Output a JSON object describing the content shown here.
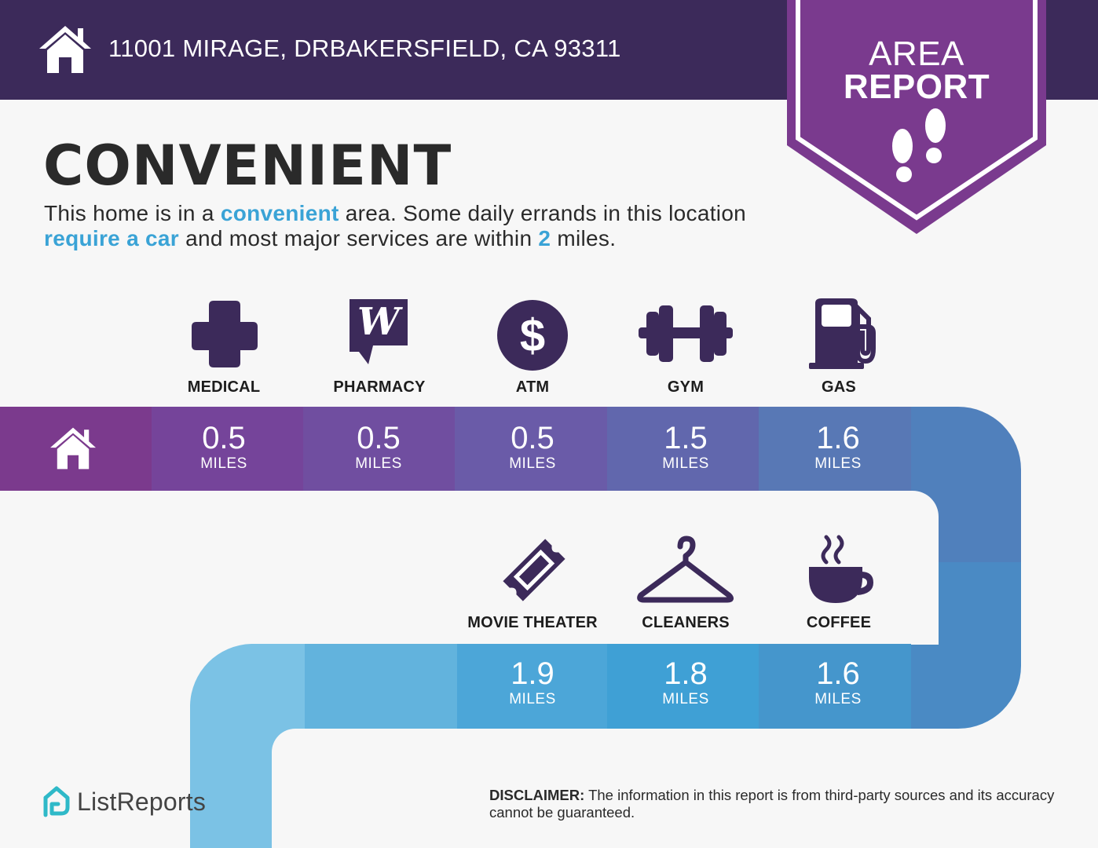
{
  "header": {
    "address": "11001 MIRAGE, DRBAKERSFIELD, CA 93311",
    "icon": "house-icon"
  },
  "badge": {
    "line1": "AREA",
    "line2": "REPORT",
    "icon": "footprints-icon"
  },
  "heading": "CONVENIENT",
  "description": {
    "part1": "This home is in a ",
    "hl1": "convenient",
    "part2": " area. Some daily errands in this location ",
    "hl2": "require a car",
    "part3": " and most major services are within ",
    "hl3": "2",
    "part4": " miles."
  },
  "amenities_top": [
    {
      "label": "MEDICAL",
      "value": "0.5",
      "unit": "MILES",
      "icon": "medical-cross-icon"
    },
    {
      "label": "PHARMACY",
      "value": "0.5",
      "unit": "MILES",
      "icon": "pharmacy-icon"
    },
    {
      "label": "ATM",
      "value": "0.5",
      "unit": "MILES",
      "icon": "dollar-icon"
    },
    {
      "label": "GYM",
      "value": "1.5",
      "unit": "MILES",
      "icon": "dumbbell-icon"
    },
    {
      "label": "GAS",
      "value": "1.6",
      "unit": "MILES",
      "icon": "gas-pump-icon"
    }
  ],
  "amenities_bottom": [
    {
      "label": "MOVIE THEATER",
      "value": "1.9",
      "unit": "MILES",
      "icon": "ticket-icon"
    },
    {
      "label": "CLEANERS",
      "value": "1.8",
      "unit": "MILES",
      "icon": "hanger-icon"
    },
    {
      "label": "COFFEE",
      "value": "1.6",
      "unit": "MILES",
      "icon": "coffee-cup-icon"
    }
  ],
  "colors": {
    "header": "#3c2a5a",
    "badge": "#7a3a8e",
    "highlight": "#3aa3d6",
    "icon": "#3c2a5a"
  },
  "footer": {
    "logo_text": "ListReports",
    "disclaimer_label": "DISCLAIMER:",
    "disclaimer_text": " The information in this report is from third-party sources and its accuracy cannot be guaranteed."
  }
}
